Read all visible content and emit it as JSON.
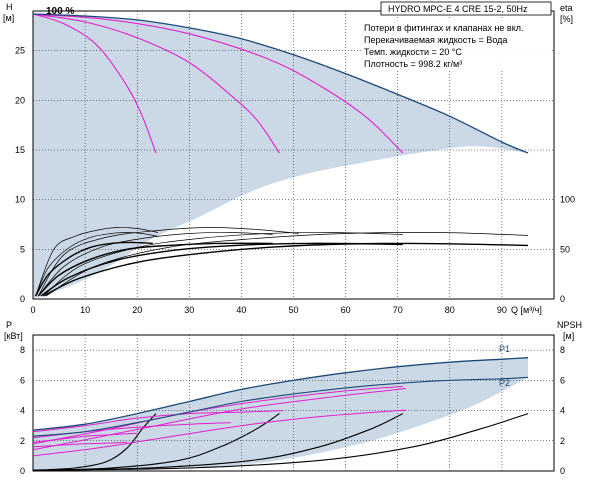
{
  "header": {
    "title": "HYDRO MPC-E 4 CRE 15-2, 50Hz",
    "speed_label": "100 %"
  },
  "notes": [
    "Потери в фитингах и клапанах не вкл.",
    "Перекачиваемая жидкость = Вода",
    "Темп. жидкости = 20 °C",
    "Плотность = 998.2 кг/м³"
  ],
  "colors": {
    "envelope_fill": "#cbd9e6",
    "max_curve": "#1c4a78",
    "pump_curves": "#e21fd0",
    "eff_curves": "#000000",
    "grid": "#000000"
  },
  "chart_data": [
    {
      "type": "line",
      "name": "head",
      "xlabel": "Q [м³/ч]",
      "ylabel_line1": "H",
      "ylabel_line2": "[м]",
      "y2label_line1": "eta",
      "y2label_line2": "[%]",
      "xlim": [
        0,
        100
      ],
      "ylim": [
        0,
        29
      ],
      "x_ticks": [
        0,
        10,
        20,
        30,
        40,
        50,
        60,
        70,
        80,
        90
      ],
      "y_ticks": [
        0,
        5,
        10,
        15,
        20,
        25
      ],
      "y2_scale_max": 290,
      "y2_ticks": [
        0,
        50,
        100
      ],
      "envelope": {
        "upper": [
          [
            0,
            28.7
          ],
          [
            10,
            28.5
          ],
          [
            20,
            28.1
          ],
          [
            30,
            27.3
          ],
          [
            40,
            26.2
          ],
          [
            50,
            24.6
          ],
          [
            60,
            22.7
          ],
          [
            70,
            20.6
          ],
          [
            80,
            18.4
          ],
          [
            90,
            15.8
          ],
          [
            95,
            14.7
          ]
        ],
        "lower": [
          [
            95,
            14.7
          ],
          [
            85,
            15.4
          ],
          [
            75,
            14.8
          ],
          [
            65,
            13.9
          ],
          [
            55,
            12.9
          ],
          [
            47,
            11.8
          ],
          [
            40,
            10.4
          ],
          [
            32,
            8.3
          ],
          [
            23,
            6.1
          ],
          [
            15,
            3.4
          ],
          [
            8,
            1.5
          ],
          [
            0,
            0
          ]
        ]
      },
      "max_curve": [
        [
          0,
          28.7
        ],
        [
          10,
          28.5
        ],
        [
          20,
          28.1
        ],
        [
          30,
          27.3
        ],
        [
          40,
          26.2
        ],
        [
          50,
          24.6
        ],
        [
          60,
          22.7
        ],
        [
          70,
          20.6
        ],
        [
          80,
          18.4
        ],
        [
          90,
          15.8
        ],
        [
          95,
          14.7
        ]
      ],
      "pump_curves": [
        [
          [
            0,
            28.7
          ],
          [
            6,
            27.7
          ],
          [
            12,
            25.7
          ],
          [
            17,
            22.3
          ],
          [
            20.5,
            19.0
          ],
          [
            23.6,
            14.7
          ]
        ],
        [
          [
            0,
            28.7
          ],
          [
            10,
            27.9
          ],
          [
            20,
            26.3
          ],
          [
            30,
            23.8
          ],
          [
            38,
            20.5
          ],
          [
            43,
            18.0
          ],
          [
            47.3,
            14.7
          ]
        ],
        [
          [
            0,
            28.7
          ],
          [
            15,
            28.1
          ],
          [
            30,
            26.7
          ],
          [
            45,
            24.2
          ],
          [
            55,
            21.5
          ],
          [
            64,
            18.3
          ],
          [
            71,
            14.7
          ]
        ]
      ],
      "efficiency_curves_pct": [
        [
          [
            0.5,
            3
          ],
          [
            3,
            25
          ],
          [
            7,
            42
          ],
          [
            11,
            52
          ],
          [
            15,
            56
          ],
          [
            19,
            57
          ],
          [
            23,
            56
          ]
        ],
        [
          [
            1,
            3
          ],
          [
            5,
            24
          ],
          [
            11,
            40
          ],
          [
            18,
            50
          ],
          [
            26,
            54
          ],
          [
            35,
            56
          ],
          [
            46,
            56
          ]
        ],
        [
          [
            1.5,
            3
          ],
          [
            7,
            22
          ],
          [
            16,
            39
          ],
          [
            27,
            49
          ],
          [
            39,
            54
          ],
          [
            53,
            56
          ],
          [
            71,
            55
          ]
        ],
        [
          [
            2,
            3
          ],
          [
            9,
            21
          ],
          [
            21,
            38
          ],
          [
            36,
            48
          ],
          [
            52,
            54
          ],
          [
            72,
            56
          ],
          [
            95,
            54
          ]
        ],
        [
          [
            0.5,
            3
          ],
          [
            3,
            32
          ],
          [
            7,
            52
          ],
          [
            11,
            62
          ],
          [
            15,
            66
          ],
          [
            18,
            67
          ],
          [
            21,
            66
          ],
          [
            24,
            63
          ]
        ],
        [
          [
            1,
            3
          ],
          [
            6,
            33
          ],
          [
            13,
            52
          ],
          [
            21,
            61
          ],
          [
            30,
            66
          ],
          [
            38,
            67
          ],
          [
            46,
            65
          ]
        ],
        [
          [
            2,
            3
          ],
          [
            9,
            33
          ],
          [
            20,
            52
          ],
          [
            32,
            61
          ],
          [
            45,
            66
          ],
          [
            57,
            67
          ],
          [
            71,
            65
          ]
        ],
        [
          [
            2.5,
            3
          ],
          [
            12,
            33
          ],
          [
            26,
            52
          ],
          [
            43,
            61
          ],
          [
            60,
            66
          ],
          [
            78,
            67
          ],
          [
            95,
            64
          ]
        ],
        [
          [
            0.5,
            3
          ],
          [
            4,
            50
          ],
          [
            8,
            63
          ],
          [
            12,
            69
          ],
          [
            16,
            72
          ],
          [
            20,
            71
          ],
          [
            24,
            67
          ]
        ],
        [
          [
            1,
            3
          ],
          [
            6,
            45
          ],
          [
            14,
            62
          ],
          [
            24,
            69
          ],
          [
            34,
            72
          ],
          [
            43,
            70
          ],
          [
            51,
            66
          ]
        ]
      ]
    },
    {
      "type": "line",
      "name": "power_npsh",
      "ylabel_line1": "P",
      "ylabel_line2": "[кВт]",
      "y2label_line1": "NPSH",
      "y2label_line2": "[м]",
      "xlim": [
        0,
        100
      ],
      "ylim": [
        0,
        9
      ],
      "y_ticks": [
        0,
        2,
        4,
        6,
        8
      ],
      "y2_ticks": [
        0,
        2,
        4,
        6,
        8
      ],
      "series_labels": [
        "P1",
        "P2"
      ],
      "envelope": {
        "upper": [
          [
            0,
            2.7
          ],
          [
            10,
            3.1
          ],
          [
            20,
            3.8
          ],
          [
            30,
            4.6
          ],
          [
            40,
            5.4
          ],
          [
            50,
            6.0
          ],
          [
            60,
            6.5
          ],
          [
            70,
            6.9
          ],
          [
            80,
            7.2
          ],
          [
            90,
            7.4
          ],
          [
            95,
            7.5
          ]
        ],
        "lower": [
          [
            95,
            6.2
          ],
          [
            85,
            4.4
          ],
          [
            75,
            3.1
          ],
          [
            65,
            2.0
          ],
          [
            55,
            1.2
          ],
          [
            45,
            0.6
          ],
          [
            35,
            0.3
          ],
          [
            25,
            0.1
          ],
          [
            15,
            0
          ],
          [
            0,
            0
          ]
        ]
      },
      "p1_curve": [
        [
          0,
          2.7
        ],
        [
          10,
          3.1
        ],
        [
          20,
          3.8
        ],
        [
          30,
          4.6
        ],
        [
          40,
          5.4
        ],
        [
          50,
          6.0
        ],
        [
          60,
          6.5
        ],
        [
          70,
          6.9
        ],
        [
          80,
          7.2
        ],
        [
          90,
          7.4
        ],
        [
          95,
          7.5
        ]
      ],
      "p2_curve": [
        [
          0,
          2.3
        ],
        [
          10,
          2.6
        ],
        [
          20,
          3.2
        ],
        [
          30,
          3.9
        ],
        [
          40,
          4.6
        ],
        [
          50,
          5.1
        ],
        [
          60,
          5.5
        ],
        [
          70,
          5.8
        ],
        [
          80,
          6.0
        ],
        [
          90,
          6.1
        ],
        [
          95,
          6.2
        ]
      ],
      "pump_power_curves": [
        [
          [
            0,
            1.6
          ],
          [
            5,
            1.7
          ],
          [
            10,
            1.8
          ],
          [
            15,
            1.85
          ],
          [
            18,
            1.9
          ]
        ],
        [
          [
            0,
            1.9
          ],
          [
            5,
            2.1
          ],
          [
            10,
            2.3
          ],
          [
            15,
            2.4
          ],
          [
            20,
            2.5
          ]
        ],
        [
          [
            0,
            2.2
          ],
          [
            10,
            2.6
          ],
          [
            20,
            2.9
          ],
          [
            30,
            3.1
          ],
          [
            38,
            3.2
          ]
        ],
        [
          [
            0,
            2.6
          ],
          [
            10,
            3.0
          ],
          [
            20,
            3.5
          ],
          [
            30,
            3.8
          ],
          [
            40,
            3.9
          ],
          [
            48,
            4.0
          ]
        ],
        [
          [
            0,
            1.0
          ],
          [
            12,
            1.5
          ],
          [
            25,
            2.2
          ],
          [
            40,
            3.0
          ],
          [
            55,
            3.6
          ],
          [
            70,
            4.0
          ],
          [
            71,
            4.0
          ]
        ],
        [
          [
            0,
            1.4
          ],
          [
            12,
            2.2
          ],
          [
            25,
            3.1
          ],
          [
            40,
            4.1
          ],
          [
            55,
            4.8
          ],
          [
            70,
            5.4
          ],
          [
            71,
            5.45
          ]
        ],
        [
          [
            0,
            1.8
          ],
          [
            15,
            2.8
          ],
          [
            30,
            3.9
          ],
          [
            45,
            4.7
          ],
          [
            60,
            5.3
          ],
          [
            71,
            5.6
          ]
        ]
      ],
      "npsh_curves": [
        [
          [
            0,
            0.05
          ],
          [
            8,
            0.2
          ],
          [
            14,
            0.6
          ],
          [
            18,
            1.5
          ],
          [
            21,
            2.8
          ],
          [
            23.6,
            3.8
          ]
        ],
        [
          [
            0,
            0.05
          ],
          [
            15,
            0.2
          ],
          [
            28,
            0.7
          ],
          [
            36,
            1.6
          ],
          [
            43,
            2.8
          ],
          [
            47.3,
            3.8
          ]
        ],
        [
          [
            0,
            0.05
          ],
          [
            22,
            0.2
          ],
          [
            42,
            0.7
          ],
          [
            55,
            1.6
          ],
          [
            65,
            2.8
          ],
          [
            71,
            3.8
          ]
        ],
        [
          [
            0,
            0.05
          ],
          [
            30,
            0.2
          ],
          [
            55,
            0.7
          ],
          [
            73,
            1.6
          ],
          [
            86,
            2.8
          ],
          [
            95,
            3.8
          ]
        ]
      ]
    }
  ]
}
